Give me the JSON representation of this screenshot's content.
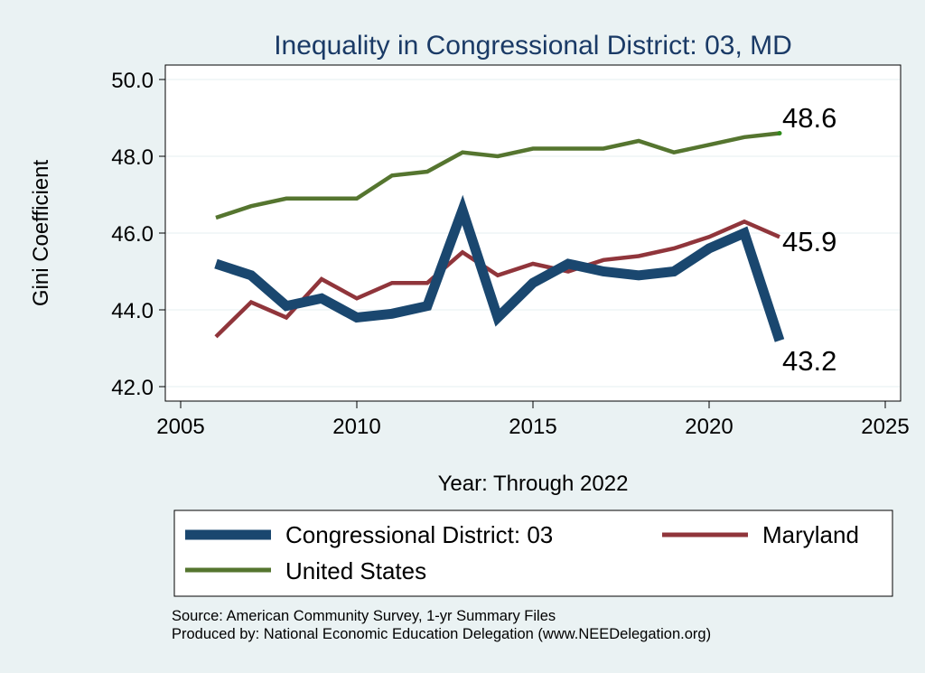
{
  "chart_data": {
    "type": "line",
    "title": "Inequality in Congressional District:  03, MD",
    "xlabel": "Year: Through 2022",
    "ylabel": "Gini Coefficient",
    "xlim": [
      2005,
      2025
    ],
    "ylim": [
      42.0,
      50.0
    ],
    "xticks": [
      "2005",
      "2010",
      "2015",
      "2020",
      "2025"
    ],
    "yticks": [
      "42.0",
      "44.0",
      "46.0",
      "48.0",
      "50.0"
    ],
    "x": [
      2006,
      2007,
      2008,
      2009,
      2010,
      2011,
      2012,
      2013,
      2014,
      2015,
      2016,
      2017,
      2018,
      2019,
      2020,
      2021,
      2022
    ],
    "series": [
      {
        "name": "Congressional District:  03",
        "color": "#1a476f",
        "values": [
          45.2,
          44.9,
          44.1,
          44.3,
          43.8,
          43.9,
          44.1,
          46.6,
          43.8,
          44.7,
          45.2,
          45.0,
          44.9,
          45.0,
          45.6,
          46.0,
          43.2
        ],
        "end_label": "43.2"
      },
      {
        "name": "Maryland",
        "color": "#90353b",
        "values": [
          43.3,
          44.2,
          43.8,
          44.8,
          44.3,
          44.7,
          44.7,
          45.5,
          44.9,
          45.2,
          45.0,
          45.3,
          45.4,
          45.6,
          45.9,
          46.3,
          45.9
        ],
        "end_label": "45.9"
      },
      {
        "name": "United States",
        "color": "#55752f",
        "values": [
          46.4,
          46.7,
          46.9,
          46.9,
          46.9,
          47.5,
          47.6,
          48.1,
          48.0,
          48.2,
          48.2,
          48.2,
          48.4,
          48.1,
          48.3,
          48.5,
          48.6
        ],
        "end_label": "48.6"
      }
    ],
    "legend_position": "bottom"
  },
  "footer": {
    "source": "Source: American Community Survey, 1-yr Summary Files",
    "produced": "Produced by: National Economic Education Delegation (www.NEEDelegation.org)"
  }
}
